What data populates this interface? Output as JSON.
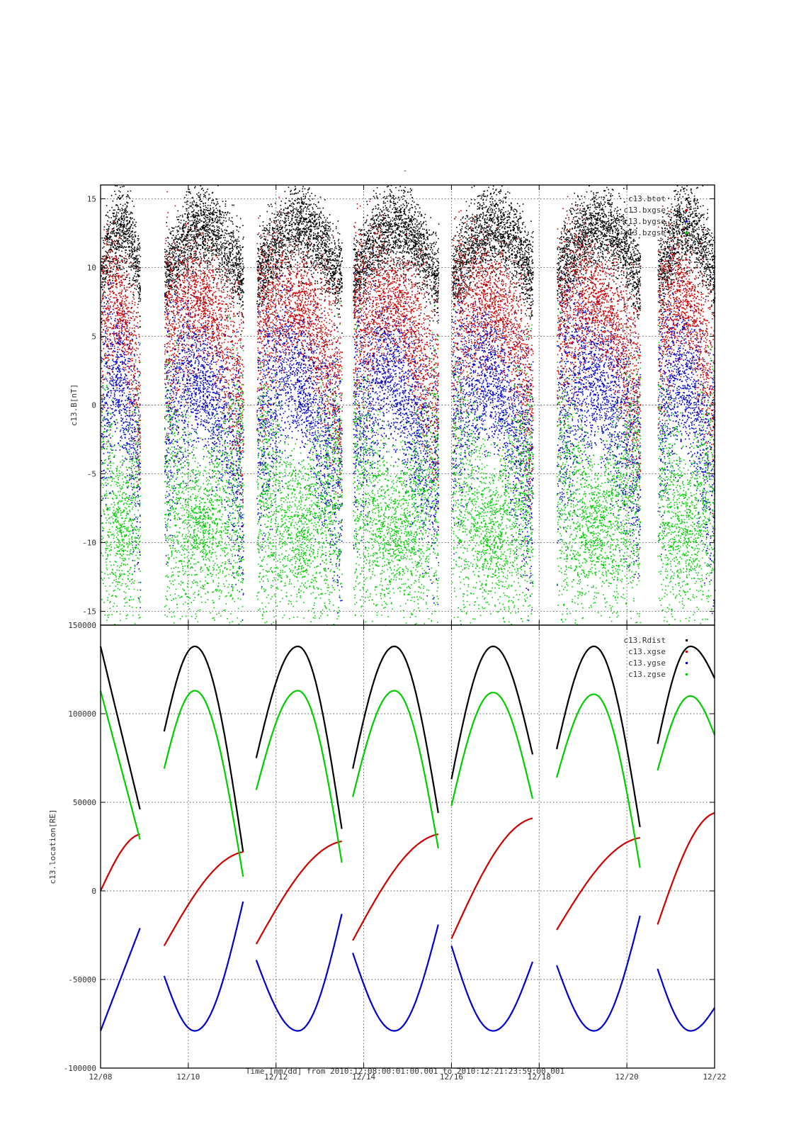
{
  "title": "-",
  "xlabel": "Time [mm/dd]  from 2010:12:08:00:01:00.001  to  2010:12:21:23:59:00.001",
  "x_ticks": [
    "12/08",
    "12/10",
    "12/12",
    "12/14",
    "12/16",
    "12/18",
    "12/20",
    "12/22"
  ],
  "colors": {
    "black": "#000000",
    "red": "#cc0000",
    "green": "#00cc00",
    "blue": "#0000cc"
  },
  "chart_data": [
    {
      "type": "scatter",
      "name": "magnetic-field",
      "ylabel": "c13.B[nT]",
      "xlim_days": [
        8,
        22
      ],
      "ylim": [
        -16,
        16
      ],
      "y_ticks": [
        "-15",
        "-10",
        "-5",
        "0",
        "5",
        "10",
        "15"
      ],
      "y_tick_values": [
        -15,
        -10,
        -5,
        0,
        5,
        10,
        15
      ],
      "legend": {
        "position": "top-right",
        "entries": [
          "c13.btot",
          "c13.bxgse",
          "c13.bygse",
          "c13.bzgse"
        ]
      },
      "series": [
        {
          "name": "c13.btot",
          "color": "#000000"
        },
        {
          "name": "c13.bxgse",
          "color": "#cc0000"
        },
        {
          "name": "c13.bygse",
          "color": "#0000cc"
        },
        {
          "name": "c13.bzgse",
          "color": "#00cc00"
        }
      ],
      "segments_days": [
        [
          8.0,
          8.9
        ],
        [
          9.45,
          11.25
        ],
        [
          11.55,
          13.5
        ],
        [
          13.75,
          15.7
        ],
        [
          16.0,
          17.85
        ],
        [
          18.4,
          20.3
        ],
        [
          20.7,
          22.0
        ]
      ]
    },
    {
      "type": "line",
      "name": "location",
      "ylabel": "c13.location[RE]",
      "xlim_days": [
        8,
        22
      ],
      "ylim": [
        -100000,
        150000
      ],
      "y_ticks": [
        "-100000",
        "-50000",
        "0",
        "50000",
        "100000",
        "150000"
      ],
      "y_tick_values": [
        -100000,
        -50000,
        0,
        50000,
        100000,
        150000
      ],
      "legend": {
        "position": "top-right",
        "entries": [
          "c13.Rdist",
          "c13.xgse",
          "c13.ygse",
          "c13.zgse"
        ]
      },
      "series": [
        {
          "name": "c13.Rdist",
          "color": "#000000",
          "x": [
            8.0,
            8.9,
            9.45,
            10.15,
            11.25,
            11.55,
            12.5,
            13.5,
            13.75,
            14.7,
            15.7,
            16.0,
            16.95,
            17.85,
            18.4,
            19.25,
            20.3,
            20.7,
            21.45,
            22.0
          ],
          "y": [
            138000,
            46000,
            90000,
            138000,
            22000,
            75000,
            138000,
            35000,
            69000,
            138000,
            44000,
            63000,
            138000,
            77000,
            80000,
            138000,
            36000,
            83000,
            138000,
            120000
          ]
        },
        {
          "name": "c13.xgse",
          "color": "#cc0000",
          "x": [
            8.0,
            8.9,
            9.45,
            11.25,
            11.55,
            13.5,
            13.75,
            15.7,
            16.0,
            17.85,
            18.4,
            20.3,
            20.7,
            22.0
          ],
          "y": [
            0,
            32000,
            -31000,
            22000,
            -30000,
            28000,
            -28000,
            32000,
            -27000,
            41000,
            -22000,
            30000,
            -19000,
            44000
          ]
        },
        {
          "name": "c13.ygse",
          "color": "#0000cc",
          "x": [
            8.0,
            8.9,
            9.45,
            10.15,
            11.25,
            11.55,
            12.5,
            13.5,
            13.75,
            14.7,
            15.7,
            16.0,
            16.95,
            17.85,
            18.4,
            19.25,
            20.3,
            20.7,
            21.45,
            22.0
          ],
          "y": [
            -79000,
            -21000,
            -48000,
            -79000,
            -6000,
            -39000,
            -79000,
            -13000,
            -35000,
            -79000,
            -19000,
            -31000,
            -79000,
            -40000,
            -42000,
            -79000,
            -14000,
            -44000,
            -79000,
            -66000
          ]
        },
        {
          "name": "c13.zgse",
          "color": "#00cc00",
          "x": [
            8.0,
            8.9,
            9.45,
            10.15,
            11.25,
            11.55,
            12.5,
            13.5,
            13.75,
            14.7,
            15.7,
            16.0,
            16.95,
            17.85,
            18.4,
            19.25,
            20.3,
            20.7,
            21.45,
            22.0
          ],
          "y": [
            113000,
            29000,
            69000,
            113000,
            8000,
            57000,
            113000,
            16000,
            53000,
            113000,
            24000,
            48000,
            112000,
            52000,
            64000,
            111000,
            13000,
            68000,
            110000,
            88000
          ]
        }
      ]
    }
  ]
}
